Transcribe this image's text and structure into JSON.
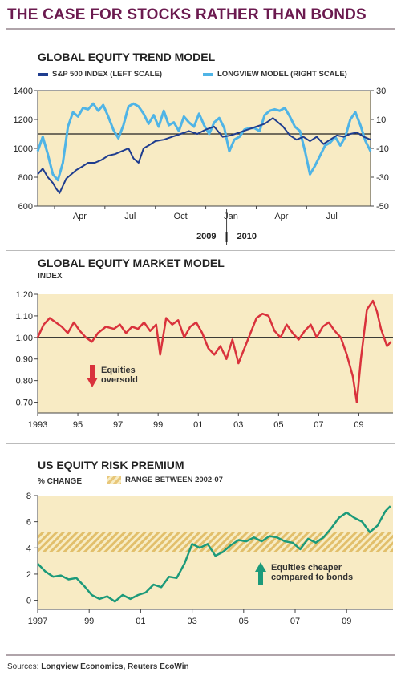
{
  "title": "THE CASE FOR STOCKS RATHER THAN BONDS",
  "source_label": "Sources:",
  "source_names": "Longview Economics, Reuters EcoWin",
  "colors": {
    "title": "#6b1a4f",
    "plot_bg": "#f8ebc4",
    "sp500": "#1f3d8f",
    "longview": "#4fb4e6",
    "market": "#d9323c",
    "premium": "#1c9a7a",
    "hatch": "#e2bf6b"
  },
  "chart_data": [
    {
      "type": "line",
      "title": "GLOBAL EQUITY TREND MODEL",
      "x_tick_labels": [
        "Apr",
        "Jul",
        "Oct",
        "Jan",
        "Apr",
        "Jul"
      ],
      "x_year_labels": [
        "2009",
        "2010"
      ],
      "left_axis": {
        "ticks": [
          600,
          800,
          1000,
          1200,
          1400
        ],
        "ylim": [
          600,
          1400
        ]
      },
      "right_axis": {
        "ticks": [
          -50,
          -30,
          -10,
          10,
          30
        ],
        "ylim": [
          -50,
          30
        ]
      },
      "reference_line_left": 1100,
      "x_range_months": [
        0,
        19.8
      ],
      "series": [
        {
          "name": "S&P 500 INDEX (LEFT SCALE)",
          "axis": "left",
          "x": [
            0,
            0.3,
            0.6,
            0.9,
            1.1,
            1.3,
            1.5,
            1.7,
            2.0,
            2.3,
            2.6,
            3.0,
            3.4,
            3.8,
            4.2,
            4.6,
            5.0,
            5.4,
            5.7,
            6.0,
            6.3,
            6.6,
            7.0,
            7.5,
            8.0,
            8.5,
            9.0,
            9.5,
            10.0,
            10.5,
            11.0,
            11.5,
            12.0,
            12.5,
            13.0,
            13.5,
            14.0,
            14.3,
            14.6,
            15.0,
            15.4,
            15.8,
            16.2,
            16.6,
            17.0,
            17.4,
            17.8,
            18.2,
            18.6,
            19.0,
            19.4,
            19.8
          ],
          "y": [
            820,
            860,
            800,
            760,
            720,
            690,
            740,
            790,
            820,
            850,
            870,
            900,
            900,
            920,
            950,
            960,
            980,
            1000,
            930,
            900,
            1000,
            1020,
            1050,
            1060,
            1080,
            1100,
            1120,
            1100,
            1130,
            1150,
            1080,
            1090,
            1110,
            1130,
            1150,
            1170,
            1210,
            1180,
            1150,
            1090,
            1060,
            1080,
            1050,
            1080,
            1030,
            1060,
            1090,
            1080,
            1100,
            1110,
            1080,
            1060
          ]
        },
        {
          "name": "LONGVIEW MODEL (RIGHT SCALE)",
          "axis": "right",
          "x": [
            0,
            0.3,
            0.6,
            0.9,
            1.2,
            1.5,
            1.8,
            2.1,
            2.4,
            2.7,
            3.0,
            3.3,
            3.6,
            3.9,
            4.2,
            4.5,
            4.8,
            5.1,
            5.4,
            5.7,
            6.0,
            6.3,
            6.6,
            6.9,
            7.2,
            7.5,
            7.8,
            8.1,
            8.4,
            8.7,
            9.0,
            9.3,
            9.6,
            9.9,
            10.2,
            10.5,
            10.8,
            11.1,
            11.4,
            11.7,
            12.0,
            12.3,
            12.6,
            12.9,
            13.2,
            13.5,
            13.8,
            14.1,
            14.4,
            14.7,
            15.0,
            15.3,
            15.6,
            15.9,
            16.2,
            16.5,
            16.8,
            17.1,
            17.4,
            17.7,
            18.0,
            18.3,
            18.6,
            18.9,
            19.2,
            19.5,
            19.8
          ],
          "y": [
            -12,
            -2,
            -14,
            -28,
            -32,
            -20,
            5,
            15,
            12,
            18,
            17,
            21,
            16,
            20,
            12,
            3,
            -3,
            6,
            19,
            21,
            19,
            14,
            7,
            13,
            5,
            16,
            6,
            8,
            2,
            12,
            8,
            5,
            14,
            6,
            0,
            8,
            11,
            4,
            -12,
            -4,
            -2,
            3,
            4,
            4,
            2,
            13,
            16,
            17,
            16,
            18,
            12,
            5,
            2,
            -12,
            -28,
            -22,
            -15,
            -8,
            -6,
            -2,
            -8,
            -2,
            10,
            15,
            6,
            -5,
            -12
          ]
        }
      ]
    },
    {
      "type": "line",
      "title": "GLOBAL EQUITY MARKET MODEL",
      "ylabel": "INDEX",
      "y_ticks": [
        "0.70",
        "0.80",
        "0.90",
        "1.00",
        "1.10",
        "1.20"
      ],
      "ylim": [
        0.65,
        1.2
      ],
      "x_tick_labels": [
        "1993",
        "95",
        "97",
        "99",
        "01",
        "03",
        "05",
        "07",
        "09"
      ],
      "x_range": [
        1993,
        2010.7
      ],
      "reference_line": 1.0,
      "annotation": "Equities oversold",
      "series": [
        {
          "name": "",
          "x": [
            1993,
            1993.3,
            1993.6,
            1993.9,
            1994.2,
            1994.5,
            1994.8,
            1995.1,
            1995.4,
            1995.7,
            1996.0,
            1996.4,
            1996.8,
            1997.1,
            1997.4,
            1997.7,
            1998.0,
            1998.3,
            1998.6,
            1998.9,
            1999.1,
            1999.4,
            1999.7,
            2000.0,
            2000.3,
            2000.6,
            2000.9,
            2001.2,
            2001.5,
            2001.8,
            2002.1,
            2002.4,
            2002.7,
            2003.0,
            2003.3,
            2003.6,
            2003.9,
            2004.2,
            2004.5,
            2004.8,
            2005.1,
            2005.4,
            2005.7,
            2006.0,
            2006.3,
            2006.6,
            2006.9,
            2007.2,
            2007.5,
            2007.8,
            2008.1,
            2008.4,
            2008.7,
            2008.9,
            2009.1,
            2009.4,
            2009.7,
            2009.9,
            2010.1,
            2010.4,
            2010.6
          ],
          "y": [
            1.0,
            1.06,
            1.09,
            1.07,
            1.05,
            1.02,
            1.07,
            1.03,
            1.0,
            0.98,
            1.02,
            1.05,
            1.04,
            1.06,
            1.02,
            1.05,
            1.04,
            1.07,
            1.03,
            1.06,
            0.92,
            1.09,
            1.06,
            1.08,
            1.0,
            1.05,
            1.07,
            1.02,
            0.95,
            0.92,
            0.96,
            0.9,
            0.99,
            0.88,
            0.95,
            1.02,
            1.09,
            1.11,
            1.1,
            1.03,
            1.0,
            1.06,
            1.02,
            0.99,
            1.03,
            1.06,
            1.0,
            1.05,
            1.07,
            1.03,
            1.0,
            0.92,
            0.82,
            0.7,
            0.9,
            1.13,
            1.17,
            1.12,
            1.04,
            0.96,
            0.98
          ]
        }
      ]
    },
    {
      "type": "line",
      "title": "US EQUITY RISK PREMIUM",
      "ylabel": "% CHANGE",
      "legend": [
        "RANGE BETWEEN 2002-07"
      ],
      "y_ticks": [
        "0",
        "2",
        "4",
        "6",
        "8"
      ],
      "ylim": [
        -0.7,
        8
      ],
      "range_band": [
        3.7,
        5.2
      ],
      "x_tick_labels": [
        "1997",
        "99",
        "01",
        "03",
        "05",
        "07",
        "09"
      ],
      "x_range": [
        1997,
        2010.8
      ],
      "annotation": "Equities cheaper compared to bonds",
      "series": [
        {
          "name": "",
          "x": [
            1997,
            1997.3,
            1997.6,
            1997.9,
            1998.2,
            1998.5,
            1998.8,
            1999.1,
            1999.4,
            1999.7,
            2000.0,
            2000.3,
            2000.6,
            2000.9,
            2001.2,
            2001.5,
            2001.8,
            2002.1,
            2002.4,
            2002.7,
            2003.0,
            2003.3,
            2003.6,
            2003.9,
            2004.2,
            2004.5,
            2004.8,
            2005.1,
            2005.4,
            2005.7,
            2006.0,
            2006.3,
            2006.6,
            2006.9,
            2007.2,
            2007.5,
            2007.8,
            2008.1,
            2008.4,
            2008.7,
            2009.0,
            2009.3,
            2009.6,
            2009.9,
            2010.2,
            2010.5,
            2010.7
          ],
          "y": [
            2.8,
            2.2,
            1.8,
            1.9,
            1.6,
            1.7,
            1.1,
            0.4,
            0.1,
            0.3,
            -0.1,
            0.4,
            0.1,
            0.4,
            0.6,
            1.2,
            1.0,
            1.8,
            1.7,
            2.8,
            4.3,
            4.0,
            4.3,
            3.4,
            3.7,
            4.2,
            4.6,
            4.5,
            4.8,
            4.5,
            4.9,
            4.8,
            4.5,
            4.4,
            3.9,
            4.7,
            4.4,
            4.8,
            5.5,
            6.3,
            6.7,
            6.3,
            6.0,
            5.2,
            5.7,
            6.8,
            7.2
          ]
        }
      ]
    }
  ]
}
